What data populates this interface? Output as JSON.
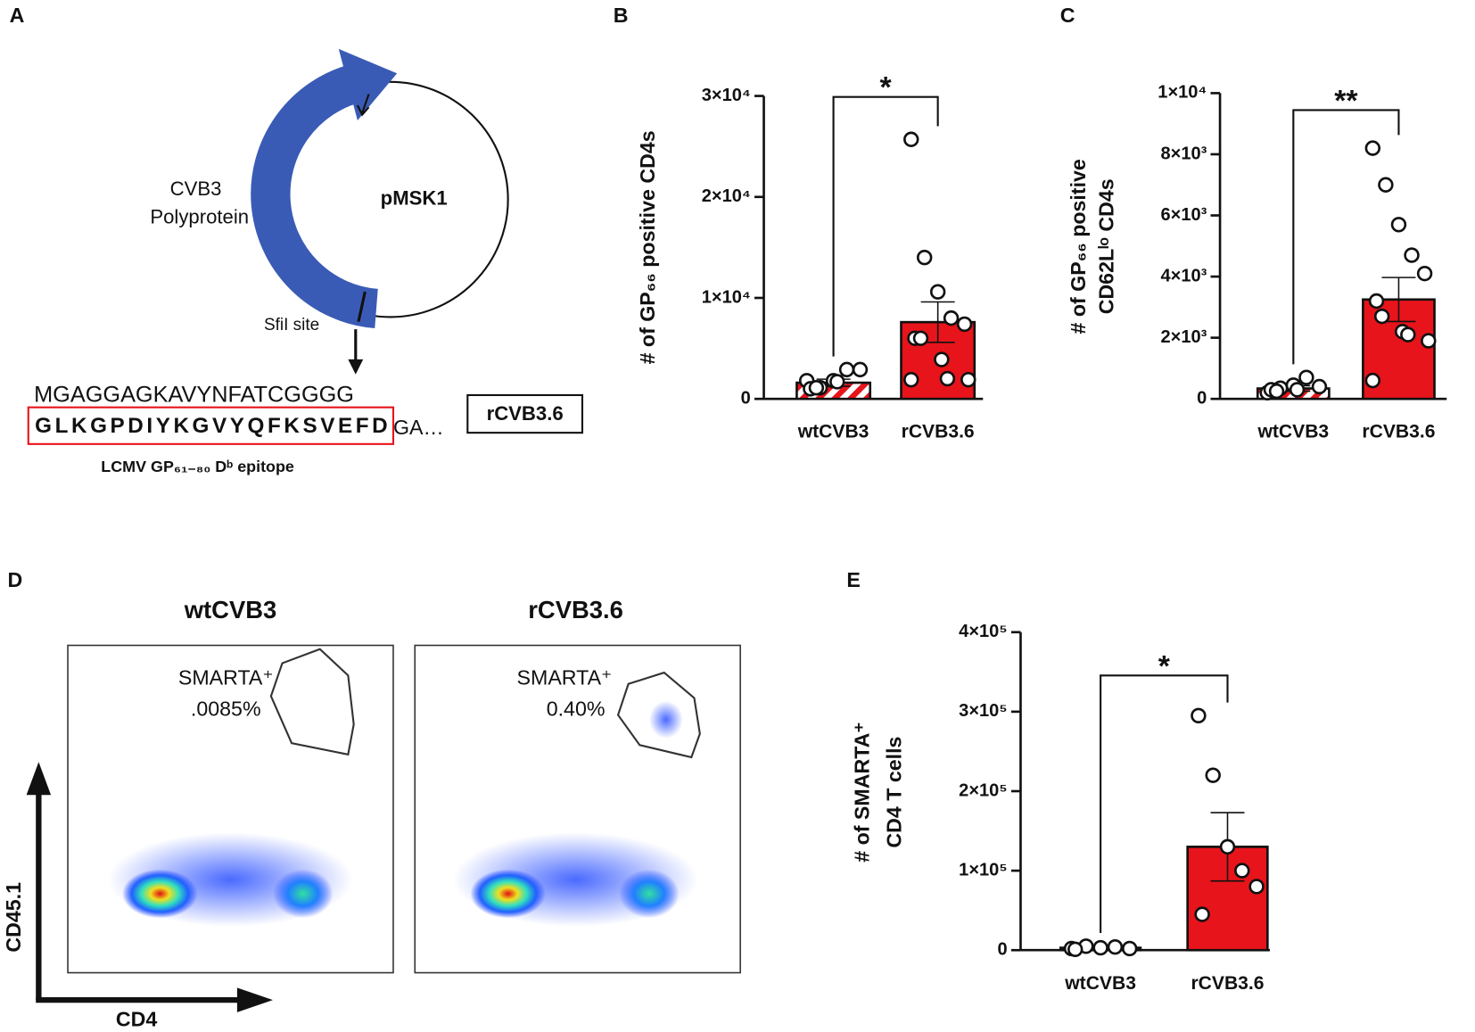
{
  "panel_labels": [
    "A",
    "B",
    "C",
    "D",
    "E"
  ],
  "diagram": {
    "arrow_label": [
      "CVB3",
      "Polyprotein"
    ],
    "plasmid": "pMSK1",
    "site": "SfiI site",
    "sequence_top": "MGAGGAGKAVYNFATCGGGG",
    "epitope": "GLKGPDIYKGVYQFKSVEFD",
    "sequence_tail": "GA…",
    "construct": "rCVB3.6",
    "epitope_caption": "LCMV GP₆₁₋₈₀ Dᵇ epitope"
  },
  "flow": {
    "titles": [
      "wtCVB3",
      "rCVB3.6"
    ],
    "gate_name": "SMARTA⁺",
    "gate_values": [
      ".0085%",
      "0.40%"
    ],
    "y_axis": "CD45.1",
    "x_axis": "CD4"
  },
  "chart_data": [
    {
      "type": "bar",
      "categories": [
        "wtCVB3",
        "rCVB3.6"
      ],
      "values": [
        1600,
        7600
      ],
      "errors": [
        350,
        2000
      ],
      "points": [
        [
          1800,
          1100,
          1800,
          2900,
          2900,
          1000,
          1100,
          1700
        ],
        [
          25700,
          14000,
          10600,
          8000,
          7400,
          6000,
          6000,
          3900,
          2000,
          1900,
          1900
        ]
      ],
      "colors": [
        "#e8141b",
        "#e8141b"
      ],
      "hatched": [
        true,
        false
      ],
      "ylim": [
        0,
        30000
      ],
      "yticks": [
        0,
        {
          "value": 10000,
          "label": "1×10⁴"
        },
        {
          "value": 20000,
          "label": "2×10⁴"
        },
        {
          "value": 30000,
          "label": "3×10⁴"
        }
      ],
      "ylabel": [
        "# of GP₆₆ positive CD4s"
      ],
      "significance": "*"
    },
    {
      "type": "bar",
      "categories": [
        "wtCVB3",
        "rCVB3.6"
      ],
      "values": [
        340,
        3250
      ],
      "errors": [
        90,
        720
      ],
      "points": [
        [
          200,
          350,
          450,
          700,
          400,
          300,
          250,
          300
        ],
        [
          8200,
          7000,
          5700,
          4700,
          4100,
          3200,
          2700,
          2200,
          2100,
          1900,
          600
        ]
      ],
      "colors": [
        "#e8141b",
        "#e8141b"
      ],
      "hatched": [
        true,
        false
      ],
      "ylim": [
        0,
        10000
      ],
      "yticks": [
        0,
        {
          "value": 2000,
          "label": "2×10³"
        },
        {
          "value": 4000,
          "label": "4×10³"
        },
        {
          "value": 6000,
          "label": "6×10³"
        },
        {
          "value": 8000,
          "label": "8×10³"
        },
        {
          "value": 10000,
          "label": "1×10⁴"
        }
      ],
      "ylabel": [
        "# of GP₆₆ positive",
        "CD62Lˡᵒ CD4s"
      ],
      "significance": "**"
    },
    {
      "type": "bar",
      "categories": [
        "wtCVB3",
        "rCVB3.6"
      ],
      "values": [
        3000,
        130000
      ],
      "errors": [
        700,
        43000
      ],
      "points": [
        [
          2000,
          5000,
          3000,
          4000,
          2000,
          1000
        ],
        [
          295000,
          220000,
          130000,
          100000,
          80000,
          45000
        ]
      ],
      "colors": [
        "#e8141b",
        "#e8141b"
      ],
      "hatched": [
        true,
        false
      ],
      "ylim": [
        0,
        400000
      ],
      "yticks": [
        0,
        {
          "value": 100000,
          "label": "1×10⁵"
        },
        {
          "value": 200000,
          "label": "2×10⁵"
        },
        {
          "value": 300000,
          "label": "3×10⁵"
        },
        {
          "value": 400000,
          "label": "4×10⁵"
        }
      ],
      "ylabel": [
        "# of SMARTA⁺",
        "CD4 T cells"
      ],
      "significance": "*"
    }
  ]
}
